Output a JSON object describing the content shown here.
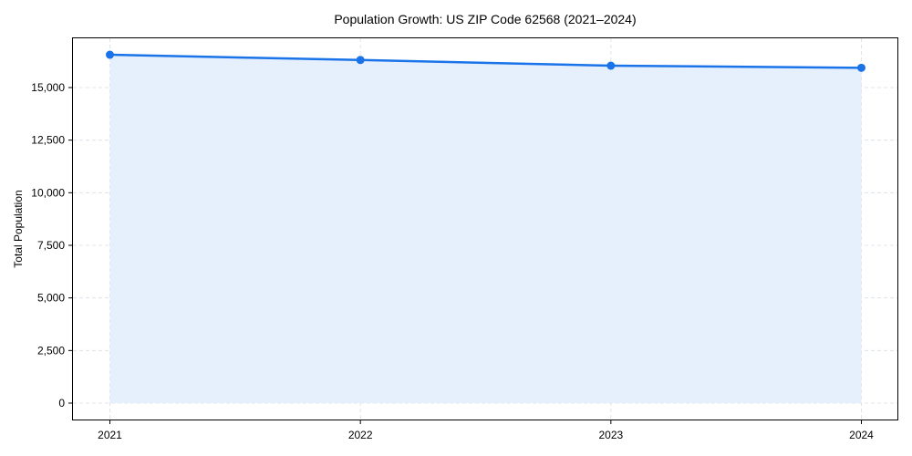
{
  "chart_data": {
    "type": "area",
    "title": "Population Growth: US ZIP Code 62568 (2021–2024)",
    "xlabel": "",
    "ylabel": "Total Population",
    "categories": [
      "2021",
      "2022",
      "2023",
      "2024"
    ],
    "series": [
      {
        "name": "Total Population",
        "values": [
          16560,
          16310,
          16040,
          15940
        ]
      }
    ],
    "yticks": [
      0,
      2500,
      5000,
      7500,
      10000,
      12500,
      15000
    ],
    "ytick_labels": [
      "0",
      "2,500",
      "5,000",
      "7,500",
      "10,000",
      "12,500",
      "15,000"
    ],
    "ylim": [
      -830,
      17400
    ],
    "grid": true,
    "legend": false,
    "colors": {
      "line": "#1a73e8",
      "fill": "#e3eefd",
      "grid": "#d9dde3",
      "axis": "#000000"
    }
  }
}
